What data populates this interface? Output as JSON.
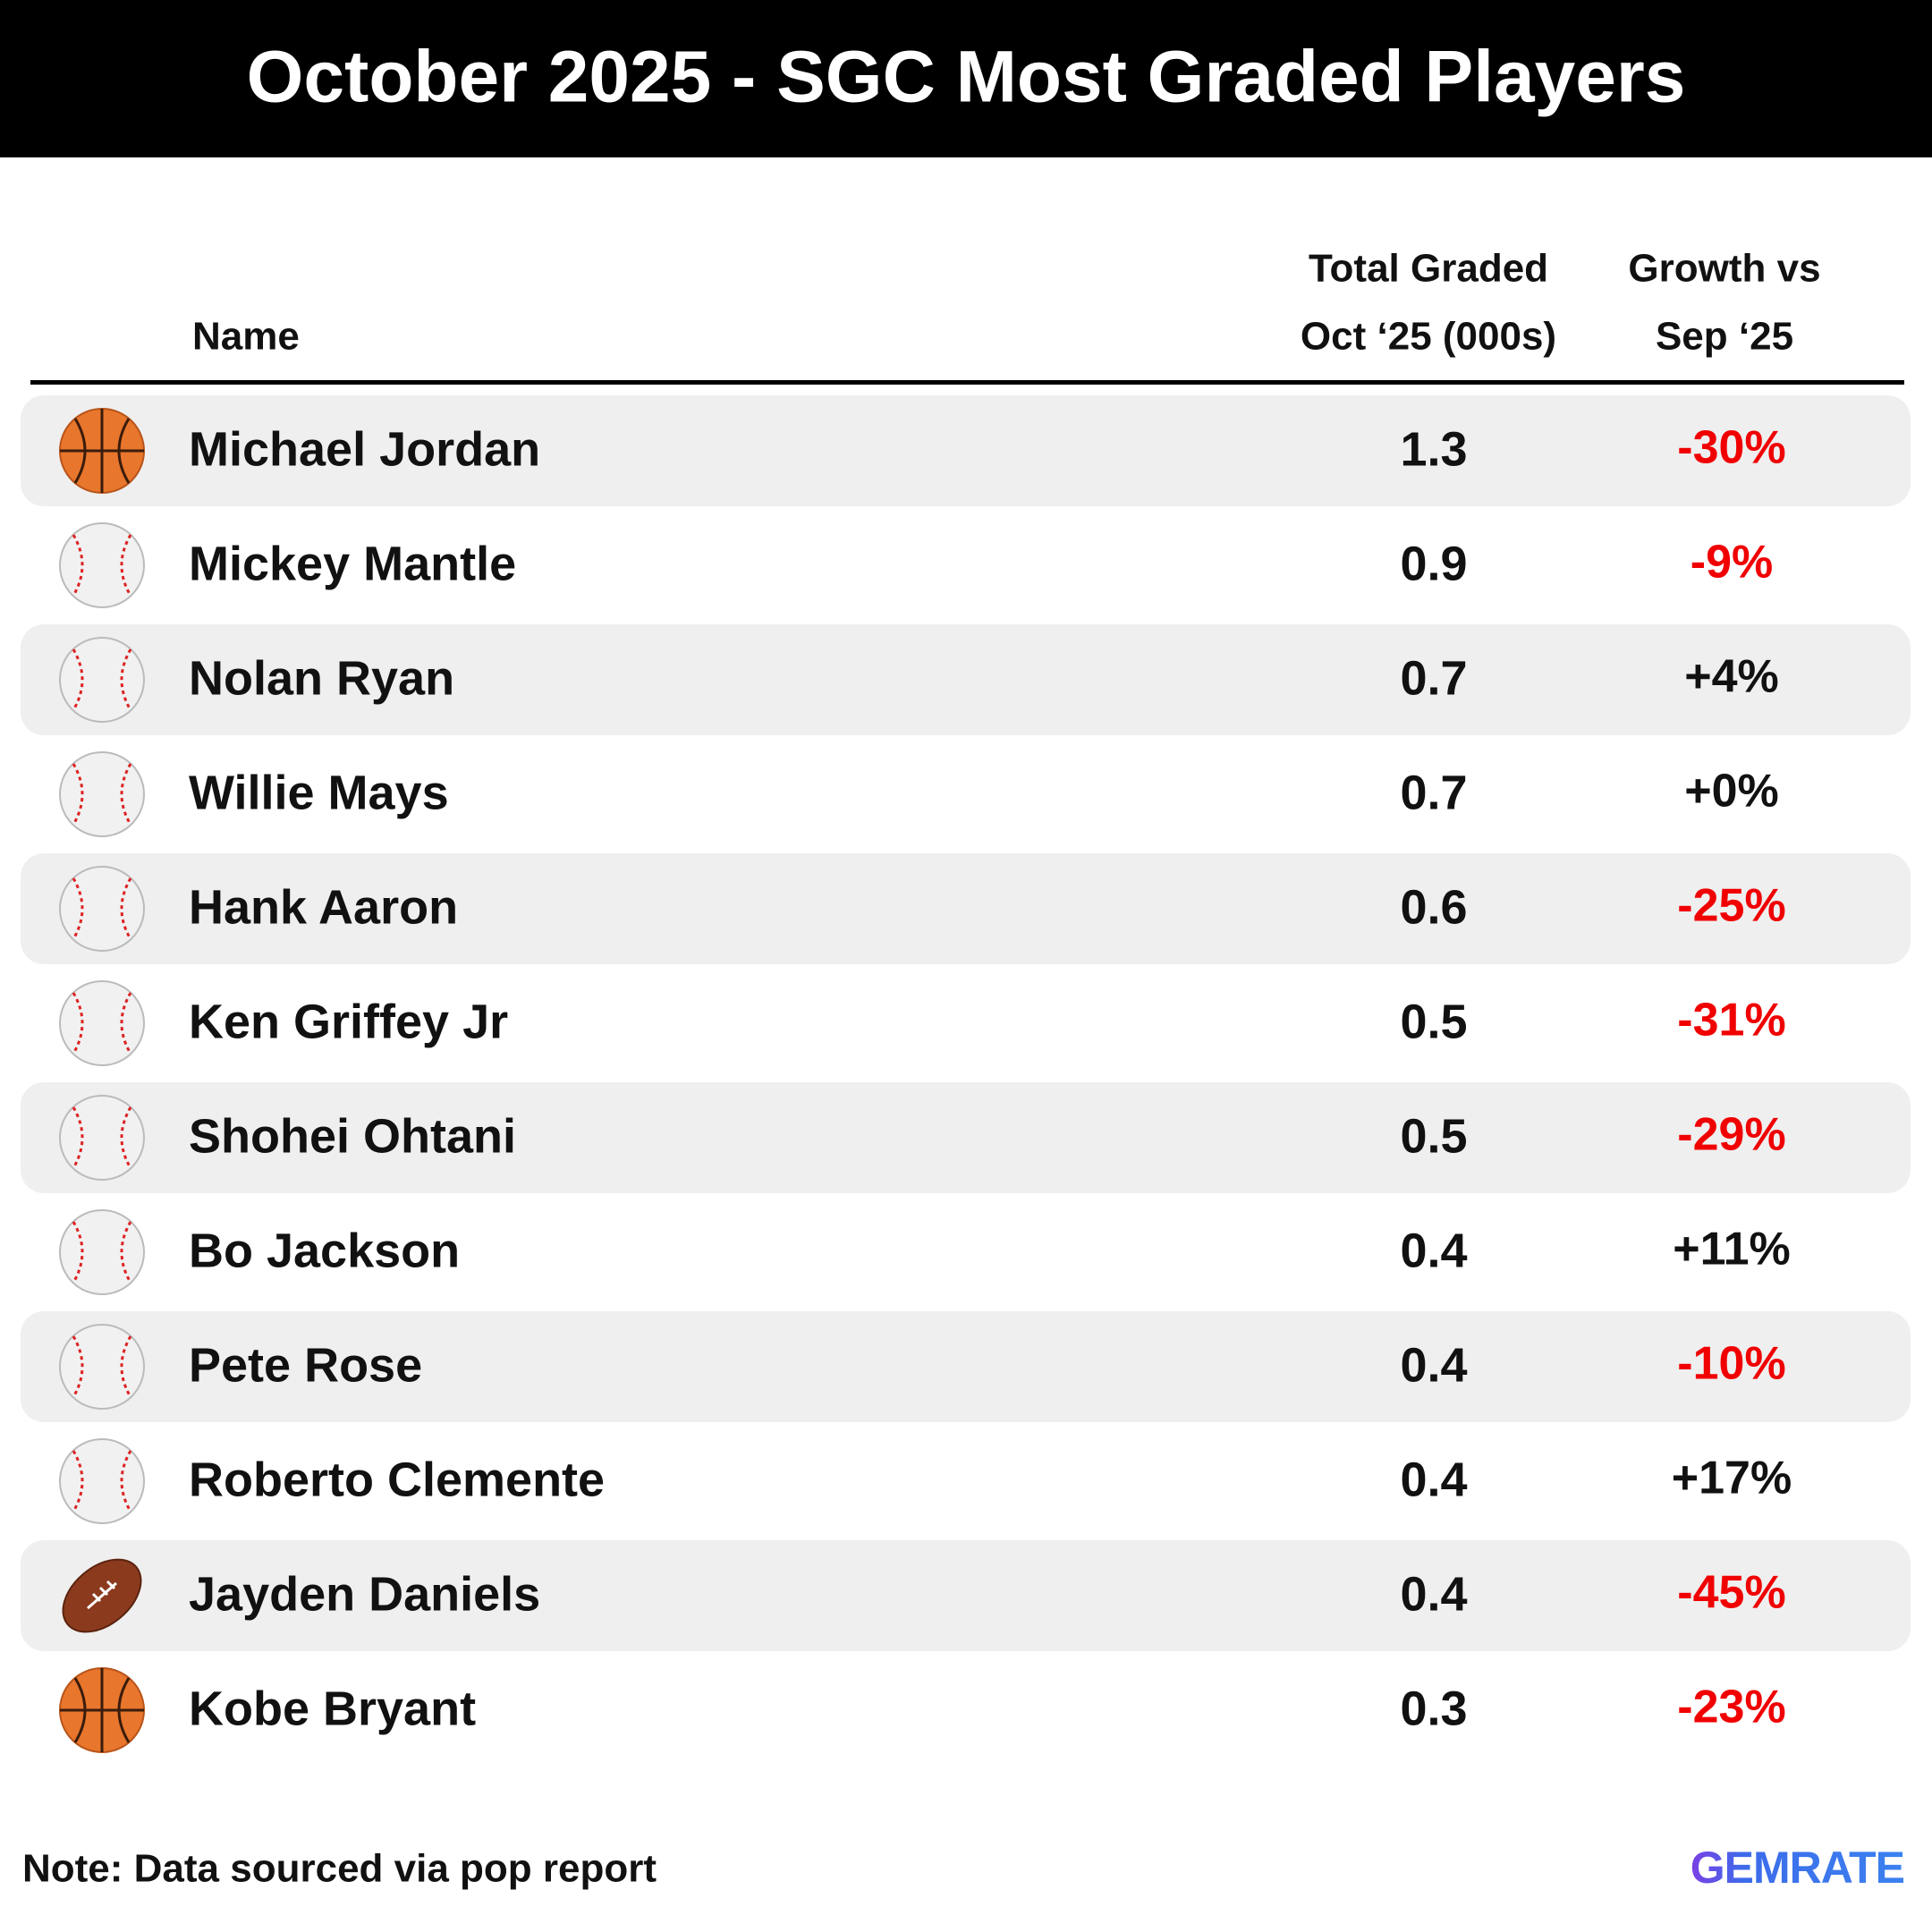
{
  "header": {
    "title": "October 2025 - SGC Most Graded Players"
  },
  "table": {
    "columns": [
      "Name",
      "Total Graded",
      "Oct ‘25 (000s)",
      "Growth vs",
      "Sep ‘25"
    ],
    "rows": [
      [
        "Michael Jordan",
        1.3,
        "-30%"
      ],
      [
        "Mickey Mantle",
        0.9,
        "-9%"
      ],
      [
        "Nolan Ryan",
        0.7,
        "+4%"
      ],
      [
        "Willie Mays",
        0.7,
        "+0%"
      ],
      [
        "Hank Aaron",
        0.6,
        "-25%"
      ],
      [
        "Ken Griffey Jr",
        0.5,
        "-31%"
      ],
      [
        "Shohei Ohtani",
        0.5,
        "-29%"
      ],
      [
        "Bo Jackson",
        0.4,
        "+11%"
      ],
      [
        "Pete Rose",
        0.4,
        "-10%"
      ],
      [
        "Roberto Clemente",
        0.4,
        "+17%"
      ],
      [
        "Jayden Daniels",
        0.4,
        "-45%"
      ],
      [
        "Kobe Bryant",
        0.3,
        "-23%"
      ]
    ]
  },
  "footer": {
    "note": "Note: Data sourced via pop report",
    "logo": "GEMRATE"
  }
}
